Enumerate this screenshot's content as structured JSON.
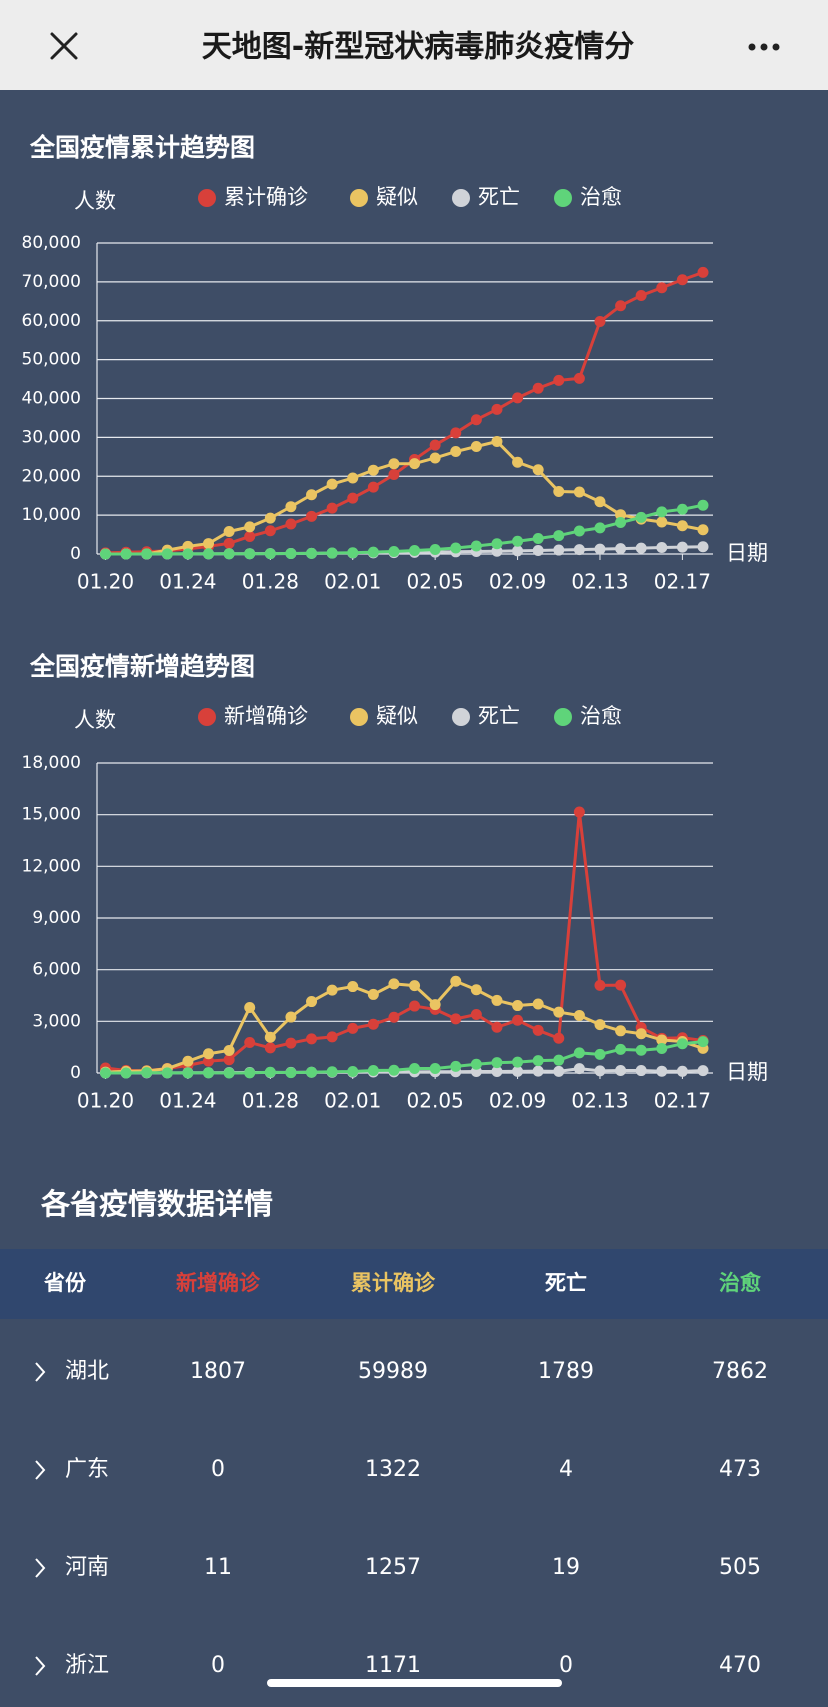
{
  "header": {
    "title": "天地图-新型冠状病毒肺炎疫情分"
  },
  "chart_data": [
    {
      "type": "line",
      "title": "全国疫情累计趋势图",
      "y_label": "人数",
      "x_label": "日期",
      "categories": [
        "01.20",
        null,
        null,
        null,
        "01.24",
        null,
        null,
        null,
        "01.28",
        null,
        null,
        null,
        "02.01",
        null,
        null,
        null,
        "02.05",
        null,
        null,
        null,
        "02.09",
        null,
        null,
        null,
        "02.13",
        null,
        null,
        null,
        "02.17",
        null
      ],
      "series": [
        {
          "name": "累计确诊",
          "color": "#d8403a",
          "values": [
            291,
            440,
            571,
            830,
            1287,
            1975,
            2744,
            4515,
            5974,
            7711,
            9692,
            11791,
            14380,
            17205,
            20438,
            24324,
            28018,
            31161,
            34546,
            37198,
            40171,
            42638,
            44653,
            45171,
            59804,
            63851,
            66492,
            68500,
            70548,
            72436
          ]
        },
        {
          "name": "疑似",
          "color": "#eac462",
          "values": [
            0,
            0,
            0,
            1000,
            1965,
            2684,
            5794,
            6973,
            9239,
            12167,
            15238,
            17988,
            19544,
            21558,
            23214,
            23260,
            24702,
            26359,
            27657,
            28942,
            23589,
            21675,
            16067,
            15940,
            13435,
            10109,
            8969,
            8228,
            7264,
            6242
          ]
        },
        {
          "name": "死亡",
          "color": "#d0d3d8",
          "values": [
            0,
            6,
            9,
            17,
            25,
            41,
            56,
            80,
            106,
            132,
            170,
            213,
            259,
            304,
            361,
            425,
            490,
            563,
            636,
            722,
            811,
            908,
            1016,
            1113,
            1259,
            1380,
            1523,
            1665,
            1770,
            1868
          ]
        },
        {
          "name": "治愈",
          "color": "#5fd47a",
          "values": [
            0,
            0,
            25,
            34,
            38,
            49,
            51,
            60,
            103,
            124,
            171,
            243,
            328,
            475,
            632,
            892,
            1153,
            1540,
            2050,
            2649,
            3281,
            3996,
            4740,
            5911,
            6723,
            8096,
            9419,
            10844,
            11500,
            12552
          ]
        }
      ],
      "ylim": [
        0,
        80000
      ],
      "yticks": [
        0,
        {
          "value": 10000,
          "label": "10,000"
        },
        {
          "value": 20000,
          "label": "20,000"
        },
        {
          "value": 30000,
          "label": "30,000"
        },
        {
          "value": 40000,
          "label": "40,000"
        },
        {
          "value": 50000,
          "label": "50,000"
        },
        {
          "value": 60000,
          "label": "60,000"
        },
        {
          "value": 70000,
          "label": "70,000"
        },
        {
          "value": 80000,
          "label": "80,000"
        }
      ],
      "grid": true,
      "legend": "top"
    },
    {
      "type": "line",
      "title": "全国疫情新增趋势图",
      "y_label": "人数",
      "x_label": "日期",
      "categories": [
        "01.20",
        null,
        null,
        null,
        "01.24",
        null,
        null,
        null,
        "01.28",
        null,
        null,
        null,
        "02.01",
        null,
        null,
        null,
        "02.05",
        null,
        null,
        null,
        "02.09",
        null,
        null,
        null,
        "02.13",
        null,
        null,
        null,
        "02.17",
        null
      ],
      "series": [
        {
          "name": "新增确诊",
          "color": "#d8403a",
          "values": [
            291,
            149,
            131,
            259,
            444,
            688,
            769,
            1771,
            1459,
            1737,
            1981,
            2099,
            2590,
            2829,
            3235,
            3887,
            3694,
            3143,
            3399,
            2656,
            3062,
            2478,
            2015,
            15152,
            5090,
            5101,
            2641,
            2009,
            2048,
            1886
          ]
        },
        {
          "name": "疑似",
          "color": "#eac462",
          "values": [
            54,
            100,
            120,
            257,
            680,
            1118,
            1309,
            3806,
            2077,
            3248,
            4148,
            4812,
            5019,
            4562,
            5173,
            5072,
            3971,
            5328,
            4833,
            4214,
            3916,
            4008,
            3536,
            3342,
            2807,
            2450,
            2277,
            1918,
            1827,
            1432
          ]
        },
        {
          "name": "死亡",
          "color": "#d0d3d8",
          "values": [
            0,
            3,
            8,
            8,
            16,
            15,
            24,
            26,
            26,
            38,
            43,
            46,
            45,
            57,
            64,
            65,
            73,
            73,
            86,
            89,
            97,
            108,
            97,
            254,
            121,
            143,
            142,
            105,
            98,
            136
          ]
        },
        {
          "name": "治愈",
          "color": "#5fd47a",
          "values": [
            0,
            0,
            25,
            9,
            4,
            11,
            2,
            9,
            43,
            21,
            47,
            72,
            85,
            147,
            157,
            262,
            261,
            387,
            510,
            600,
            632,
            716,
            744,
            1171,
            1081,
            1373,
            1323,
            1425,
            1701,
            1824
          ]
        }
      ],
      "ylim": [
        0,
        18000
      ],
      "yticks": [
        0,
        {
          "value": 3000,
          "label": "3,000"
        },
        {
          "value": 6000,
          "label": "6,000"
        },
        {
          "value": 9000,
          "label": "9,000"
        },
        {
          "value": 12000,
          "label": "12,000"
        },
        {
          "value": 15000,
          "label": "15,000"
        },
        {
          "value": 18000,
          "label": "18,000"
        }
      ],
      "grid": true,
      "legend": "top"
    }
  ],
  "section_title": "各省疫情数据详情",
  "table": {
    "columns": [
      "省份",
      "新增确诊",
      "累计确诊",
      "死亡",
      "治愈"
    ],
    "rows": [
      [
        "湖北",
        1807,
        59989,
        1789,
        7862
      ],
      [
        "广东",
        0,
        1322,
        4,
        473
      ],
      [
        "河南",
        11,
        1257,
        19,
        505
      ],
      [
        "浙江",
        0,
        1171,
        0,
        470
      ]
    ]
  }
}
